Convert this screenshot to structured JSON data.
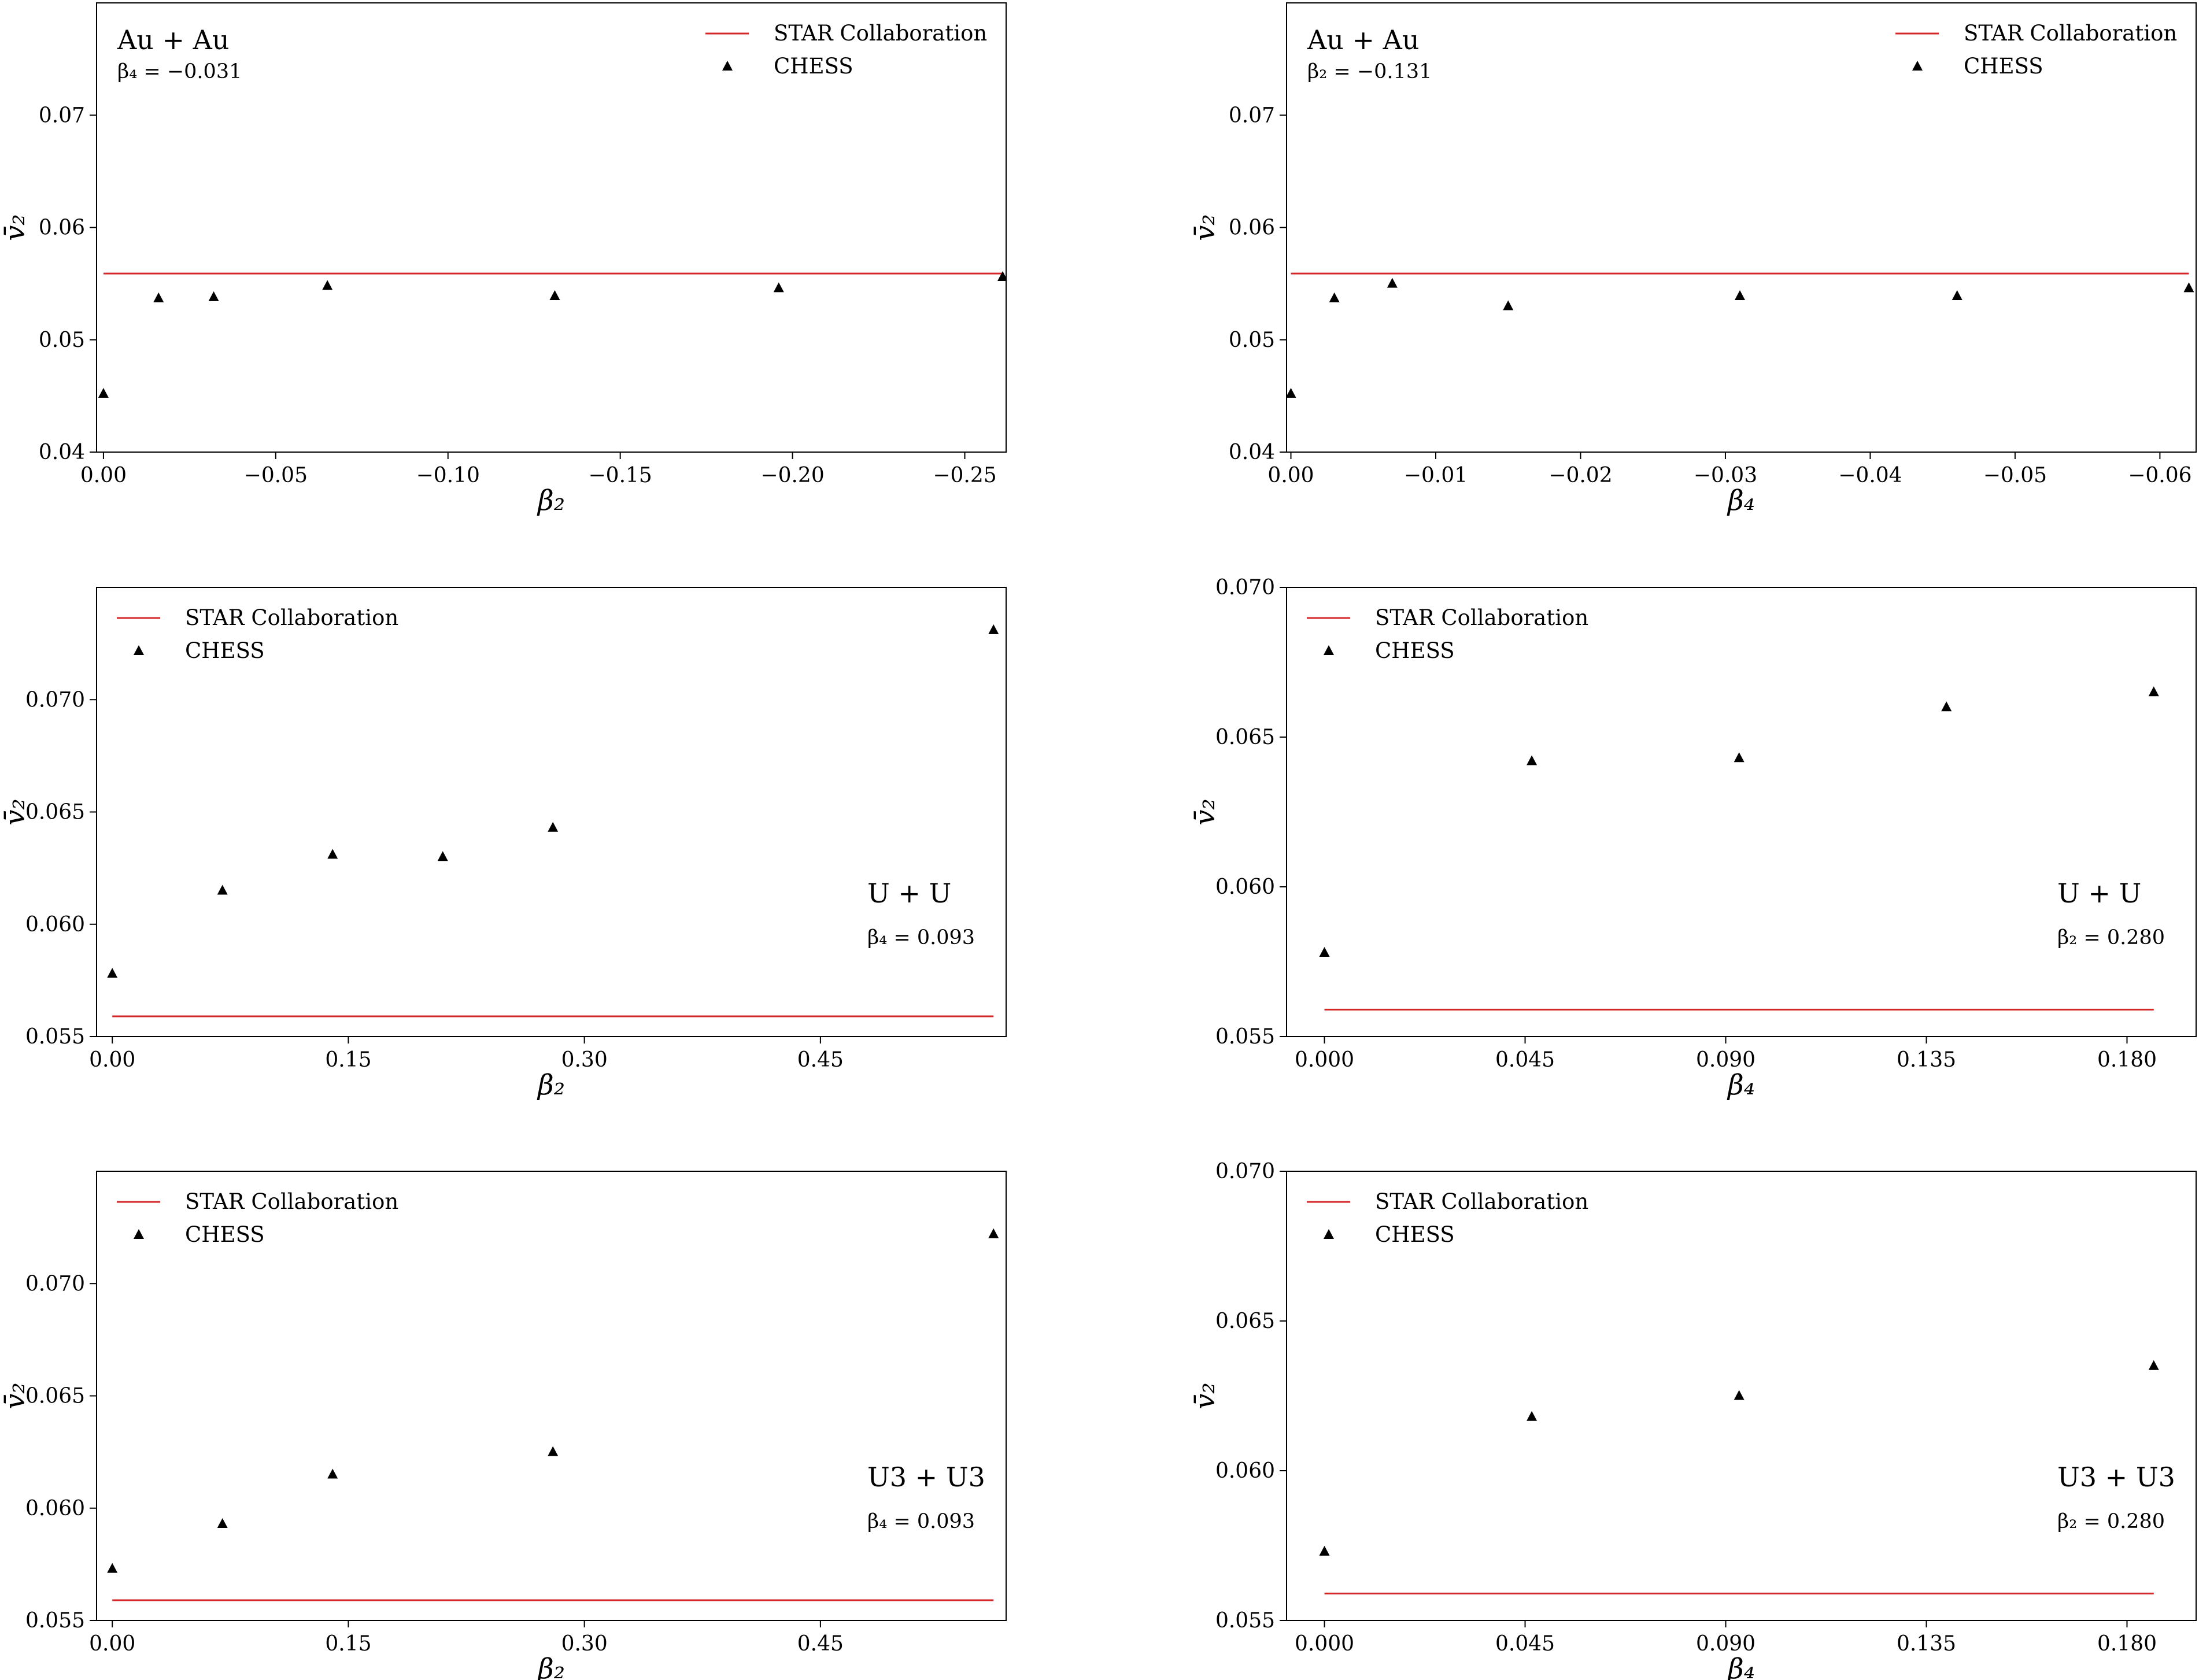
{
  "colors": {
    "star": "#d62728",
    "chess": "#000000",
    "axes": "#000000"
  },
  "chart_data": [
    {
      "type": "scatter",
      "system": "Au + Au",
      "fixed_param": "β₄ = −0.031",
      "xlabel": "β₂",
      "ylabel": "v̄₂",
      "xlim": [
        0.002,
        -0.262
      ],
      "ylim": [
        0.04,
        0.08
      ],
      "xticks": [
        0.0,
        -0.05,
        -0.1,
        -0.15,
        -0.2,
        -0.25
      ],
      "xtick_labels": [
        "0.00",
        "−0.05",
        "−0.10",
        "−0.15",
        "−0.20",
        "−0.25"
      ],
      "yticks": [
        0.04,
        0.05,
        0.06,
        0.07
      ],
      "ytick_labels": [
        "0.04",
        "0.05",
        "0.06",
        "0.07"
      ],
      "legend": "top-right",
      "label_position": "top-left",
      "series": [
        {
          "name": "STAR Collaboration",
          "kind": "line",
          "x": [
            0.0,
            -0.261
          ],
          "y": [
            0.0559,
            0.0559
          ]
        },
        {
          "name": "CHESS",
          "kind": "marker",
          "x": [
            0.0,
            -0.016,
            -0.032,
            -0.065,
            -0.131,
            -0.196,
            -0.261
          ],
          "y": [
            0.0452,
            0.0537,
            0.0538,
            0.0548,
            0.0539,
            0.0546,
            0.0556
          ]
        }
      ]
    },
    {
      "type": "scatter",
      "system": "Au + Au",
      "fixed_param": "β₂ = −0.131",
      "xlabel": "β₄",
      "ylabel": "v̄₂",
      "xlim": [
        0.0003,
        -0.0625
      ],
      "ylim": [
        0.04,
        0.08
      ],
      "xticks": [
        0.0,
        -0.01,
        -0.02,
        -0.03,
        -0.04,
        -0.05,
        -0.06
      ],
      "xtick_labels": [
        "0.00",
        "−0.01",
        "−0.02",
        "−0.03",
        "−0.04",
        "−0.05",
        "−0.06"
      ],
      "yticks": [
        0.04,
        0.05,
        0.06,
        0.07
      ],
      "ytick_labels": [
        "0.04",
        "0.05",
        "0.06",
        "0.07"
      ],
      "legend": "top-right",
      "label_position": "top-left",
      "series": [
        {
          "name": "STAR Collaboration",
          "kind": "line",
          "x": [
            0.0,
            -0.062
          ],
          "y": [
            0.0559,
            0.0559
          ]
        },
        {
          "name": "CHESS",
          "kind": "marker",
          "x": [
            0.0,
            -0.003,
            -0.007,
            -0.015,
            -0.031,
            -0.046,
            -0.062
          ],
          "y": [
            0.0452,
            0.0537,
            0.055,
            0.053,
            0.0539,
            0.0539,
            0.0546
          ]
        }
      ]
    },
    {
      "type": "scatter",
      "system": "U + U",
      "fixed_param": "β₄ = 0.093",
      "xlabel": "β₂",
      "ylabel": "v̄₂",
      "xlim": [
        -0.01,
        0.568
      ],
      "ylim": [
        0.055,
        0.075
      ],
      "xticks": [
        0.0,
        0.15,
        0.3,
        0.45
      ],
      "xtick_labels": [
        "0.00",
        "0.15",
        "0.30",
        "0.45"
      ],
      "yticks": [
        0.055,
        0.06,
        0.065,
        0.07
      ],
      "ytick_labels": [
        "0.055",
        "0.060",
        "0.065",
        "0.070"
      ],
      "legend": "top-left",
      "label_position": "right",
      "series": [
        {
          "name": "STAR Collaboration",
          "kind": "line",
          "x": [
            0.0,
            0.56
          ],
          "y": [
            0.0559,
            0.0559
          ]
        },
        {
          "name": "CHESS",
          "kind": "marker",
          "x": [
            0.0,
            0.07,
            0.14,
            0.21,
            0.28,
            0.56
          ],
          "y": [
            0.0578,
            0.0615,
            0.0631,
            0.063,
            0.0643,
            0.0731
          ]
        }
      ]
    },
    {
      "type": "scatter",
      "system": "U + U",
      "fixed_param": "β₂ = 0.280",
      "xlabel": "β₄",
      "ylabel": "v̄₂",
      "xlim": [
        -0.0085,
        0.1955
      ],
      "ylim": [
        0.055,
        0.07
      ],
      "xticks": [
        0.0,
        0.045,
        0.09,
        0.135,
        0.18
      ],
      "xtick_labels": [
        "0.000",
        "0.045",
        "0.090",
        "0.135",
        "0.180"
      ],
      "yticks": [
        0.055,
        0.06,
        0.065,
        0.07
      ],
      "ytick_labels": [
        "0.055",
        "0.060",
        "0.065",
        "0.070"
      ],
      "legend": "top-left",
      "label_position": "right",
      "series": [
        {
          "name": "STAR Collaboration",
          "kind": "line",
          "x": [
            0.0,
            0.186
          ],
          "y": [
            0.0559,
            0.0559
          ]
        },
        {
          "name": "CHESS",
          "kind": "marker",
          "x": [
            0.0,
            0.0465,
            0.093,
            0.1395,
            0.186
          ],
          "y": [
            0.0578,
            0.0642,
            0.0643,
            0.066,
            0.0665
          ]
        }
      ]
    },
    {
      "type": "scatter",
      "system": "U3 + U3",
      "fixed_param": "β₄ = 0.093",
      "xlabel": "β₂",
      "ylabel": "v̄₂",
      "xlim": [
        -0.01,
        0.568
      ],
      "ylim": [
        0.055,
        0.075
      ],
      "xticks": [
        0.0,
        0.15,
        0.3,
        0.45
      ],
      "xtick_labels": [
        "0.00",
        "0.15",
        "0.30",
        "0.45"
      ],
      "yticks": [
        0.055,
        0.06,
        0.065,
        0.07
      ],
      "ytick_labels": [
        "0.055",
        "0.060",
        "0.065",
        "0.070"
      ],
      "legend": "top-left",
      "label_position": "right",
      "series": [
        {
          "name": "STAR Collaboration",
          "kind": "line",
          "x": [
            0.0,
            0.56
          ],
          "y": [
            0.0559,
            0.0559
          ]
        },
        {
          "name": "CHESS",
          "kind": "marker",
          "x": [
            0.0,
            0.07,
            0.14,
            0.28,
            0.56
          ],
          "y": [
            0.0573,
            0.0593,
            0.0615,
            0.0625,
            0.0722
          ]
        }
      ]
    },
    {
      "type": "scatter",
      "system": "U3 + U3",
      "fixed_param": "β₂ = 0.280",
      "xlabel": "β₄",
      "ylabel": "v̄₂",
      "xlim": [
        -0.0085,
        0.1955
      ],
      "ylim": [
        0.055,
        0.07
      ],
      "xticks": [
        0.0,
        0.045,
        0.09,
        0.135,
        0.18
      ],
      "xtick_labels": [
        "0.000",
        "0.045",
        "0.090",
        "0.135",
        "0.180"
      ],
      "yticks": [
        0.055,
        0.06,
        0.065,
        0.07
      ],
      "ytick_labels": [
        "0.055",
        "0.060",
        "0.065",
        "0.070"
      ],
      "legend": "top-left",
      "label_position": "right",
      "series": [
        {
          "name": "STAR Collaboration",
          "kind": "line",
          "x": [
            0.0,
            0.186
          ],
          "y": [
            0.0559,
            0.0559
          ]
        },
        {
          "name": "CHESS",
          "kind": "marker",
          "x": [
            0.0,
            0.0465,
            0.093,
            0.186
          ],
          "y": [
            0.0573,
            0.0618,
            0.0625,
            0.0635
          ]
        }
      ]
    }
  ]
}
